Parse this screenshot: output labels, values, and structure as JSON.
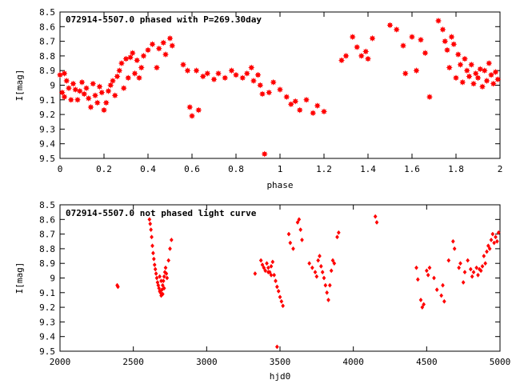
{
  "chart_data": [
    {
      "type": "scatter",
      "title": "072914-5507.0 phased with P=269.30day",
      "xlabel": "phase",
      "ylabel": "I[mag]",
      "xlim": [
        0,
        2
      ],
      "ylim": [
        8.5,
        9.5
      ],
      "y_inverted": true,
      "x_ticks": [
        "0",
        "0.2",
        "0.4",
        "0.6",
        "0.8",
        "1",
        "1.2",
        "1.4",
        "1.6",
        "1.8",
        "2"
      ],
      "y_ticks": [
        "8.5",
        "8.6",
        "8.7",
        "8.8",
        "8.9",
        "9",
        "9.1",
        "9.2",
        "9.3",
        "9.4",
        "9.5"
      ],
      "marker": "filled-star",
      "color": "#ff0000",
      "series": [
        {
          "points": [
            [
              0.0,
              8.93
            ],
            [
              0.01,
              9.05
            ],
            [
              0.02,
              8.92
            ],
            [
              0.02,
              9.08
            ],
            [
              0.03,
              8.97
            ],
            [
              0.04,
              9.02
            ],
            [
              0.05,
              9.1
            ],
            [
              0.06,
              8.99
            ],
            [
              0.07,
              9.03
            ],
            [
              0.08,
              9.1
            ],
            [
              0.09,
              9.04
            ],
            [
              0.1,
              8.98
            ],
            [
              0.11,
              9.06
            ],
            [
              0.12,
              9.02
            ],
            [
              0.13,
              9.09
            ],
            [
              0.14,
              9.15
            ],
            [
              0.15,
              8.99
            ],
            [
              0.16,
              9.07
            ],
            [
              0.17,
              9.12
            ],
            [
              0.18,
              9.01
            ],
            [
              0.19,
              9.05
            ],
            [
              0.2,
              9.17
            ],
            [
              0.21,
              9.12
            ],
            [
              0.22,
              9.04
            ],
            [
              0.23,
              9.0
            ],
            [
              0.24,
              8.97
            ],
            [
              0.25,
              9.07
            ],
            [
              0.26,
              8.94
            ],
            [
              0.27,
              8.9
            ],
            [
              0.28,
              8.85
            ],
            [
              0.29,
              9.02
            ],
            [
              0.3,
              8.82
            ],
            [
              0.31,
              8.95
            ],
            [
              0.32,
              8.81
            ],
            [
              0.33,
              8.78
            ],
            [
              0.34,
              8.92
            ],
            [
              0.35,
              8.83
            ],
            [
              0.36,
              8.95
            ],
            [
              0.37,
              8.88
            ],
            [
              0.38,
              8.8
            ],
            [
              0.4,
              8.76
            ],
            [
              0.42,
              8.72
            ],
            [
              0.44,
              8.88
            ],
            [
              0.45,
              8.75
            ],
            [
              0.47,
              8.71
            ],
            [
              0.48,
              8.79
            ],
            [
              0.5,
              8.68
            ],
            [
              0.51,
              8.73
            ],
            [
              0.56,
              8.86
            ],
            [
              0.58,
              8.9
            ],
            [
              0.59,
              9.15
            ],
            [
              0.6,
              9.21
            ],
            [
              0.62,
              8.9
            ],
            [
              0.63,
              9.17
            ],
            [
              0.65,
              8.94
            ],
            [
              0.67,
              8.92
            ],
            [
              0.7,
              8.96
            ],
            [
              0.72,
              8.92
            ],
            [
              0.75,
              8.95
            ],
            [
              0.78,
              8.9
            ],
            [
              0.8,
              8.93
            ],
            [
              0.83,
              8.95
            ],
            [
              0.85,
              8.92
            ],
            [
              0.87,
              8.88
            ],
            [
              0.88,
              8.97
            ],
            [
              0.9,
              8.93
            ],
            [
              0.91,
              9.0
            ],
            [
              0.92,
              9.06
            ],
            [
              0.93,
              9.47
            ],
            [
              0.95,
              9.05
            ],
            [
              0.97,
              8.98
            ],
            [
              1.0,
              9.03
            ],
            [
              1.03,
              9.08
            ],
            [
              1.05,
              9.13
            ],
            [
              1.07,
              9.11
            ],
            [
              1.09,
              9.17
            ],
            [
              1.12,
              9.1
            ],
            [
              1.15,
              9.19
            ],
            [
              1.17,
              9.14
            ],
            [
              1.2,
              9.18
            ],
            [
              1.28,
              8.83
            ],
            [
              1.3,
              8.8
            ],
            [
              1.33,
              8.67
            ],
            [
              1.35,
              8.74
            ],
            [
              1.37,
              8.8
            ],
            [
              1.39,
              8.77
            ],
            [
              1.4,
              8.82
            ],
            [
              1.42,
              8.68
            ],
            [
              1.5,
              8.59
            ],
            [
              1.53,
              8.62
            ],
            [
              1.56,
              8.73
            ],
            [
              1.57,
              8.92
            ],
            [
              1.6,
              8.67
            ],
            [
              1.62,
              8.9
            ],
            [
              1.64,
              8.69
            ],
            [
              1.66,
              8.78
            ],
            [
              1.68,
              9.08
            ],
            [
              1.72,
              8.56
            ],
            [
              1.74,
              8.62
            ],
            [
              1.75,
              8.7
            ],
            [
              1.76,
              8.76
            ],
            [
              1.77,
              8.88
            ],
            [
              1.78,
              8.67
            ],
            [
              1.79,
              8.72
            ],
            [
              1.8,
              8.95
            ],
            [
              1.81,
              8.79
            ],
            [
              1.82,
              8.86
            ],
            [
              1.83,
              8.98
            ],
            [
              1.84,
              8.82
            ],
            [
              1.85,
              8.9
            ],
            [
              1.86,
              8.94
            ],
            [
              1.87,
              8.86
            ],
            [
              1.88,
              8.99
            ],
            [
              1.89,
              8.92
            ],
            [
              1.9,
              8.95
            ],
            [
              1.91,
              8.89
            ],
            [
              1.92,
              9.01
            ],
            [
              1.93,
              8.9
            ],
            [
              1.94,
              8.97
            ],
            [
              1.95,
              8.85
            ],
            [
              1.96,
              8.93
            ],
            [
              1.97,
              8.99
            ],
            [
              1.98,
              8.91
            ],
            [
              1.99,
              8.96
            ]
          ]
        }
      ]
    },
    {
      "type": "scatter",
      "title": "072914-5507.0 not phased light curve",
      "xlabel": "hjd0",
      "ylabel": "I[mag]",
      "xlim": [
        2000,
        5000
      ],
      "ylim": [
        8.5,
        9.5
      ],
      "y_inverted": true,
      "x_ticks": [
        "2000",
        "2500",
        "3000",
        "3500",
        "4000",
        "4500",
        "5000"
      ],
      "y_ticks": [
        "8.5",
        "8.6",
        "8.7",
        "8.8",
        "8.9",
        "9",
        "9.1",
        "9.2",
        "9.3",
        "9.4",
        "9.5"
      ],
      "marker": "filled-diamond",
      "color": "#ff0000",
      "series": [
        {
          "points": [
            [
              2390,
              9.05
            ],
            [
              2395,
              9.06
            ],
            [
              2610,
              8.6
            ],
            [
              2615,
              8.63
            ],
            [
              2620,
              8.67
            ],
            [
              2625,
              8.72
            ],
            [
              2630,
              8.78
            ],
            [
              2635,
              8.83
            ],
            [
              2640,
              8.87
            ],
            [
              2645,
              8.91
            ],
            [
              2650,
              8.94
            ],
            [
              2655,
              8.97
            ],
            [
              2660,
              9.0
            ],
            [
              2665,
              9.03
            ],
            [
              2670,
              9.05
            ],
            [
              2675,
              9.07
            ],
            [
              2680,
              9.09
            ],
            [
              2685,
              9.1
            ],
            [
              2690,
              9.12
            ],
            [
              2695,
              9.08
            ],
            [
              2700,
              9.05
            ],
            [
              2705,
              9.02
            ],
            [
              2710,
              8.99
            ],
            [
              2715,
              8.96
            ],
            [
              2720,
              8.93
            ],
            [
              2725,
              8.97
            ],
            [
              2730,
              9.0
            ],
            [
              2740,
              8.88
            ],
            [
              2750,
              8.8
            ],
            [
              2760,
              8.74
            ],
            [
              2700,
              9.11
            ],
            [
              2710,
              9.07
            ],
            [
              2690,
              9.02
            ],
            [
              2680,
              8.99
            ],
            [
              3330,
              8.97
            ],
            [
              3370,
              8.88
            ],
            [
              3380,
              8.91
            ],
            [
              3390,
              8.93
            ],
            [
              3400,
              8.95
            ],
            [
              3410,
              8.9
            ],
            [
              3420,
              8.93
            ],
            [
              3430,
              8.96
            ],
            [
              3440,
              8.92
            ],
            [
              3450,
              8.89
            ],
            [
              3460,
              8.98
            ],
            [
              3470,
              9.02
            ],
            [
              3480,
              9.06
            ],
            [
              3490,
              9.09
            ],
            [
              3500,
              9.13
            ],
            [
              3510,
              9.16
            ],
            [
              3520,
              9.19
            ],
            [
              3420,
              8.96
            ],
            [
              3440,
              8.98
            ],
            [
              3480,
              9.47
            ],
            [
              3560,
              8.7
            ],
            [
              3570,
              8.76
            ],
            [
              3590,
              8.8
            ],
            [
              3620,
              8.62
            ],
            [
              3630,
              8.6
            ],
            [
              3640,
              8.67
            ],
            [
              3650,
              8.74
            ],
            [
              3700,
              8.9
            ],
            [
              3720,
              8.93
            ],
            [
              3740,
              8.96
            ],
            [
              3750,
              8.99
            ],
            [
              3760,
              8.88
            ],
            [
              3770,
              8.85
            ],
            [
              3780,
              8.92
            ],
            [
              3790,
              8.96
            ],
            [
              3800,
              9.0
            ],
            [
              3810,
              9.05
            ],
            [
              3820,
              9.1
            ],
            [
              3830,
              9.15
            ],
            [
              3840,
              9.05
            ],
            [
              3850,
              8.95
            ],
            [
              3860,
              8.88
            ],
            [
              3870,
              8.9
            ],
            [
              3890,
              8.72
            ],
            [
              3900,
              8.69
            ],
            [
              4150,
              8.58
            ],
            [
              4160,
              8.62
            ],
            [
              4430,
              8.93
            ],
            [
              4440,
              9.01
            ],
            [
              4460,
              9.15
            ],
            [
              4470,
              9.2
            ],
            [
              4480,
              9.18
            ],
            [
              4500,
              8.95
            ],
            [
              4510,
              8.98
            ],
            [
              4520,
              8.93
            ],
            [
              4550,
              9.0
            ],
            [
              4570,
              9.08
            ],
            [
              4600,
              9.12
            ],
            [
              4610,
              9.05
            ],
            [
              4620,
              9.16
            ],
            [
              4650,
              8.88
            ],
            [
              4680,
              8.75
            ],
            [
              4690,
              8.8
            ],
            [
              4720,
              8.93
            ],
            [
              4730,
              8.9
            ],
            [
              4750,
              9.03
            ],
            [
              4760,
              8.96
            ],
            [
              4780,
              8.88
            ],
            [
              4800,
              8.94
            ],
            [
              4810,
              8.99
            ],
            [
              4820,
              8.96
            ],
            [
              4840,
              8.93
            ],
            [
              4850,
              8.98
            ],
            [
              4860,
              8.94
            ],
            [
              4870,
              8.95
            ],
            [
              4880,
              8.92
            ],
            [
              4890,
              8.85
            ],
            [
              4900,
              8.9
            ],
            [
              4910,
              8.82
            ],
            [
              4920,
              8.78
            ],
            [
              4930,
              8.8
            ],
            [
              4940,
              8.74
            ],
            [
              4950,
              8.7
            ],
            [
              4960,
              8.76
            ],
            [
              4970,
              8.72
            ],
            [
              4980,
              8.75
            ],
            [
              4990,
              8.69
            ]
          ]
        }
      ]
    }
  ]
}
